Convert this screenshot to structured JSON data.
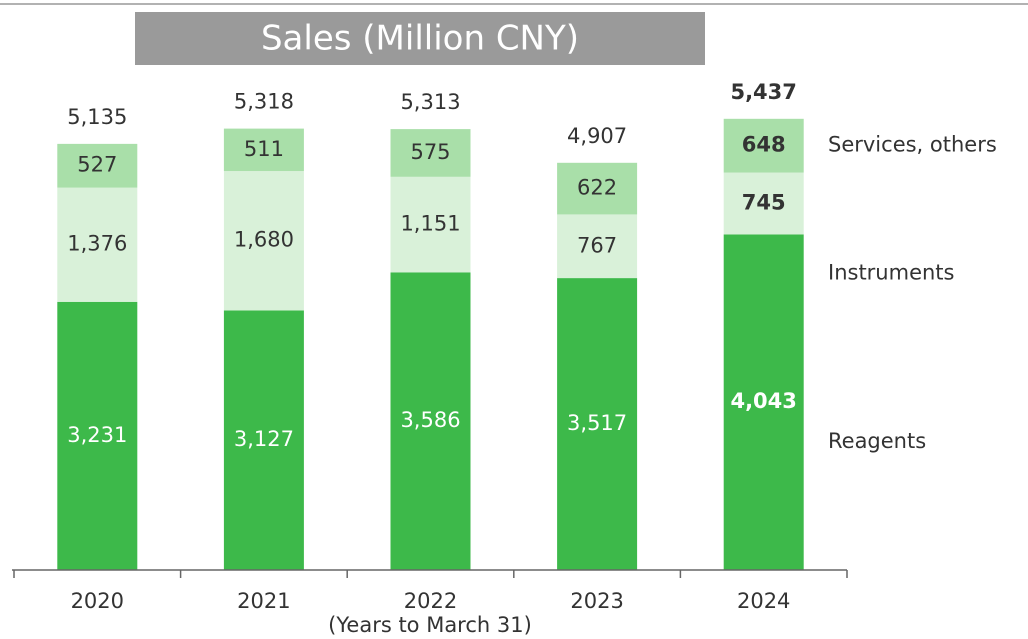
{
  "chart_data": {
    "type": "stacked_bar",
    "title": "Sales (Million CNY)",
    "x_label": "(Years to March 31)",
    "categories": [
      "2020",
      "2021",
      "2022",
      "2023",
      "2024"
    ],
    "series": [
      {
        "name": "Reagents",
        "color": "#3db94a",
        "values": [
          3231,
          3127,
          3586,
          3517,
          4043
        ],
        "value_labels": [
          "3,231",
          "3,127",
          "3,586",
          "3,517",
          "4,043"
        ]
      },
      {
        "name": "Instruments",
        "color": "#d9f1d9",
        "values": [
          1376,
          1680,
          1151,
          767,
          745
        ],
        "value_labels": [
          "1,376",
          "1,680",
          "1,151",
          "767",
          "745"
        ]
      },
      {
        "name": "Services, others",
        "color": "#a9dfa9",
        "values": [
          527,
          511,
          575,
          622,
          648
        ],
        "value_labels": [
          "527",
          "511",
          "575",
          "622",
          "648"
        ]
      }
    ],
    "totals": {
      "values": [
        5135,
        5318,
        5313,
        4907,
        5437
      ],
      "value_labels": [
        "5,135",
        "5,318",
        "5,313",
        "4,907",
        "5,437"
      ]
    },
    "ylim": [
      0,
      6000
    ]
  }
}
